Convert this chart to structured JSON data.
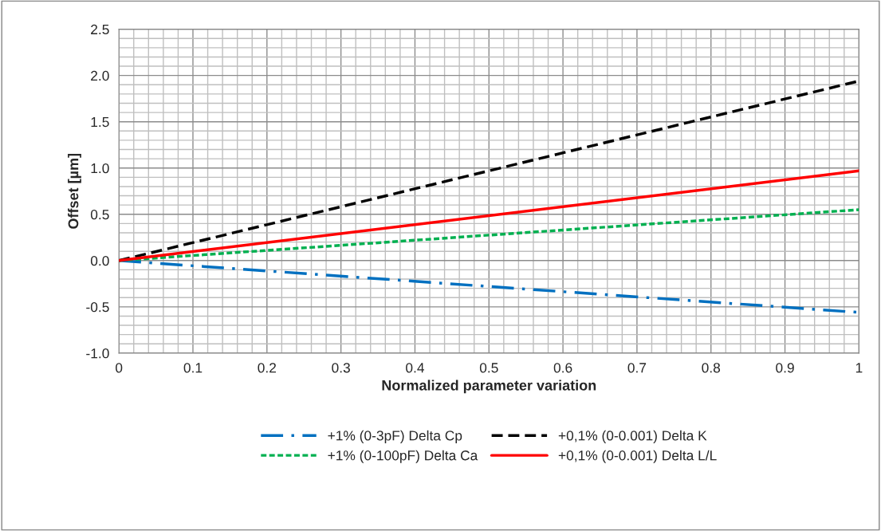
{
  "chart_data": {
    "type": "line",
    "xlabel": "Normalized parameter variation",
    "ylabel": "Offset [µm]",
    "x": [
      0,
      1
    ],
    "series": [
      {
        "name": "+1% (0-3pF) Delta Cp",
        "color": "#0070c0",
        "values": [
          0,
          -0.56
        ],
        "line_style": "dashdot"
      },
      {
        "name": "+1% (0-100pF) Delta Ca",
        "color": "#00b050",
        "values": [
          0,
          0.55
        ],
        "line_style": "dotted"
      },
      {
        "name": "+0,1% (0-0.001) Delta K",
        "color": "#000000",
        "values": [
          0,
          1.94
        ],
        "line_style": "dashed"
      },
      {
        "name": "+0,1% (0-0.001) Delta L/L",
        "color": "#ff0000",
        "values": [
          0,
          0.97
        ],
        "line_style": "solid"
      }
    ],
    "xlim": [
      0,
      1
    ],
    "xticks": [
      0,
      0.1,
      0.2,
      0.3,
      0.4,
      0.5,
      0.6,
      0.7,
      0.8,
      0.9,
      1
    ],
    "ylim": [
      -1,
      2.5
    ],
    "yticks": [
      {
        "value": -1,
        "label": "-1.0"
      },
      {
        "value": -0.5,
        "label": "-0.5"
      },
      {
        "value": 0,
        "label": "0.0"
      },
      {
        "value": 0.5,
        "label": "0.5"
      },
      {
        "value": 1,
        "label": "1.0"
      },
      {
        "value": 1.5,
        "label": "1.5"
      },
      {
        "value": 2,
        "label": "2.0"
      },
      {
        "value": 2.5,
        "label": "2.5"
      }
    ],
    "grid": true,
    "legend": "bottom",
    "marker": "none"
  }
}
